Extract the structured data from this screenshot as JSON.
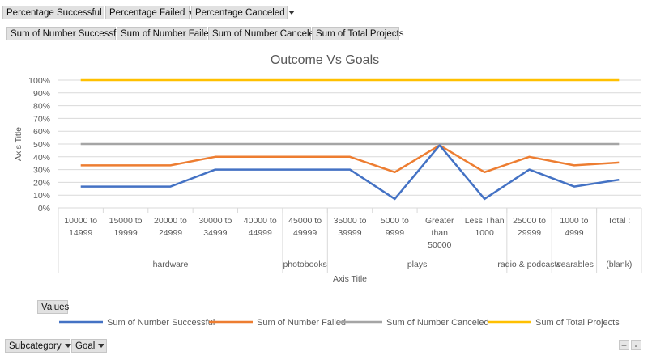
{
  "filters": {
    "top": [
      {
        "label": "Percentage Successful"
      },
      {
        "label": "Percentage Failed"
      },
      {
        "label": "Percentage Canceled"
      }
    ],
    "values": [
      "Sum of Number Successful",
      "Sum of Number Failed",
      "Sum of Number Canceled",
      "Sum of Total Projects"
    ],
    "values_button": "Values",
    "bottom": [
      {
        "label": "Subcategory"
      },
      {
        "label": "Goal"
      }
    ]
  },
  "zoom": {
    "plus": "+",
    "minus": "-"
  },
  "colors": {
    "successful": "#4472c4",
    "failed": "#ed7d31",
    "canceled": "#a5a5a5",
    "total": "#ffc000",
    "grid": "#d9d9d9"
  },
  "chart_data": {
    "type": "line",
    "title": "Outcome Vs Goals",
    "xlabel": "Axis Title",
    "ylabel": "Axis Title",
    "ylim": [
      0,
      1
    ],
    "yticks": [
      "0%",
      "10%",
      "20%",
      "30%",
      "40%",
      "50%",
      "60%",
      "70%",
      "80%",
      "90%",
      "100%"
    ],
    "grid": true,
    "legend_position": "bottom",
    "categories": [
      [
        "10000 to",
        "14999"
      ],
      [
        "15000 to",
        "19999"
      ],
      [
        "20000 to",
        "24999"
      ],
      [
        "30000 to",
        "34999"
      ],
      [
        "40000 to",
        "44999"
      ],
      [
        "45000 to",
        "49999"
      ],
      [
        "35000 to",
        "39999"
      ],
      [
        "5000 to",
        "9999"
      ],
      [
        "Greater",
        "than",
        "50000"
      ],
      [
        "Less Than",
        "1000"
      ],
      [
        "25000 to",
        "29999"
      ],
      [
        "1000 to",
        "4999"
      ],
      [
        "Total :"
      ]
    ],
    "groups": [
      {
        "label": "hardware",
        "count": 5
      },
      {
        "label": "photobooks",
        "count": 1
      },
      {
        "label": "plays",
        "count": 4
      },
      {
        "label": "radio & podcasts",
        "count": 1
      },
      {
        "label": "wearables",
        "count": 1
      },
      {
        "label": "(blank)",
        "count": 1
      }
    ],
    "series": [
      {
        "name": "Sum of Number Successful",
        "values": [
          0.167,
          0.167,
          0.167,
          0.3,
          0.3,
          0.3,
          0.3,
          0.07,
          0.49,
          0.07,
          0.3,
          0.167,
          0.22
        ]
      },
      {
        "name": "Sum of Number Failed",
        "values": [
          0.333,
          0.333,
          0.333,
          0.4,
          0.4,
          0.4,
          0.4,
          0.28,
          0.49,
          0.28,
          0.4,
          0.333,
          0.355
        ]
      },
      {
        "name": "Sum of Number Canceled",
        "values": [
          0.5,
          0.5,
          0.5,
          0.5,
          0.5,
          0.5,
          0.5,
          0.5,
          0.5,
          0.5,
          0.5,
          0.5,
          0.5
        ]
      },
      {
        "name": "Sum of Total Projects",
        "values": [
          1,
          1,
          1,
          1,
          1,
          1,
          1,
          1,
          1,
          1,
          1,
          1,
          1
        ]
      }
    ]
  }
}
